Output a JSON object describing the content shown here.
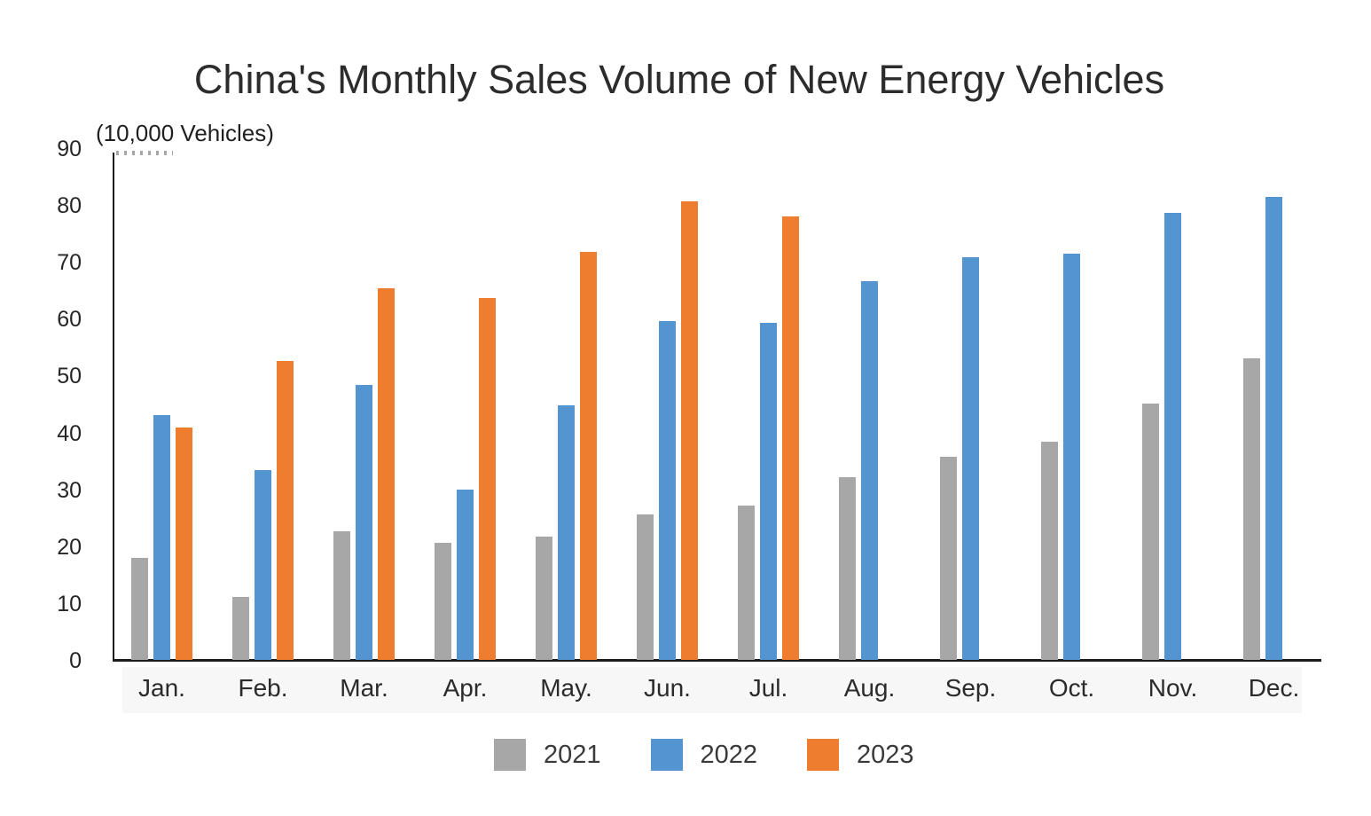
{
  "chart_data": {
    "type": "bar",
    "title": "China's Monthly Sales Volume of New Energy Vehicles",
    "unit_label": "(10,000 Vehicles)",
    "categories": [
      "Jan.",
      "Feb.",
      "Mar.",
      "Apr.",
      "May.",
      "Jun.",
      "Jul.",
      "Aug.",
      "Sep.",
      "Oct.",
      "Nov.",
      "Dec."
    ],
    "series": [
      {
        "name": "2021",
        "color": "#a7a7a7",
        "values": [
          17.9,
          11.0,
          22.6,
          20.6,
          21.7,
          25.6,
          27.1,
          32.1,
          35.7,
          38.3,
          45.0,
          53.1
        ]
      },
      {
        "name": "2022",
        "color": "#5494d0",
        "values": [
          43.1,
          33.4,
          48.4,
          29.9,
          44.7,
          59.6,
          59.3,
          66.6,
          70.8,
          71.4,
          78.6,
          81.4
        ]
      },
      {
        "name": "2023",
        "color": "#ee7d2f",
        "values": [
          40.8,
          52.5,
          65.3,
          63.6,
          71.7,
          80.6,
          78.0,
          null,
          null,
          null,
          null,
          null
        ]
      }
    ],
    "xlabel": "",
    "ylabel": "",
    "ylim": [
      0,
      90
    ],
    "y_ticks": [
      0,
      10,
      20,
      30,
      40,
      50,
      60,
      70,
      80,
      90
    ],
    "grid": false,
    "legend_position": "bottom",
    "axis_color": "#1a1a1a",
    "background_color": "#ffffff"
  }
}
